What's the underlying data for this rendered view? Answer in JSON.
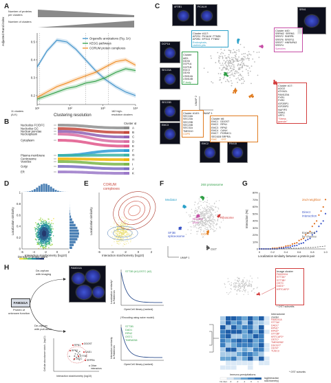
{
  "panels": {
    "A": "A",
    "B": "B",
    "C": "C",
    "D": "D",
    "E": "E",
    "F": "F",
    "G": "G",
    "H": "H"
  },
  "panelA": {
    "top_label_1": "Number of proteins\nper clusters",
    "top_label_2": "Number of clusters",
    "ylabel": "Adjusted Rand index",
    "xlabel": "Clustering resolution",
    "left_note": "11 clusters\n(A-K)",
    "right_note": "182 high-\nresolution clusters",
    "x_ticks": [
      "10¹",
      "10²",
      "10³",
      "10⁴"
    ],
    "y_ticks": [
      "0.2",
      "0.3",
      "0.4",
      "0.5"
    ],
    "legend": [
      {
        "name": "Organelle annotations (Fig. 3A)",
        "color": "#3a8fc8"
      },
      {
        "name": "KEGG pathways",
        "color": "#2e9e45"
      },
      {
        "name": "CORUM protein complexes",
        "color": "#ef8a1f"
      }
    ]
  },
  "chart_data": [
    {
      "type": "line",
      "xlabel": "Clustering resolution",
      "ylabel": "Adjusted Rand index",
      "xscale": "log",
      "ylim": [
        0.15,
        0.55
      ],
      "grid": false,
      "legend_position": "top-right",
      "series": [
        {
          "name": "Organelle annotations (Fig. 3A)",
          "x": [
            10,
            20,
            40,
            80,
            150,
            300,
            600,
            1200,
            2500,
            5000,
            10000
          ],
          "y": [
            0.36,
            0.45,
            0.51,
            0.5,
            0.46,
            0.4,
            0.34,
            0.29,
            0.25,
            0.22,
            0.2
          ]
        },
        {
          "name": "KEGG pathways",
          "x": [
            10,
            20,
            40,
            80,
            150,
            300,
            600,
            1200,
            2500,
            5000,
            10000
          ],
          "y": [
            0.18,
            0.2,
            0.22,
            0.24,
            0.25,
            0.27,
            0.28,
            0.3,
            0.33,
            0.35,
            0.34
          ]
        },
        {
          "name": "CORUM protein complexes",
          "x": [
            10,
            20,
            40,
            80,
            150,
            300,
            600,
            1200,
            2500,
            5000,
            10000
          ],
          "y": [
            0.19,
            0.22,
            0.25,
            0.27,
            0.29,
            0.31,
            0.33,
            0.36,
            0.39,
            0.4,
            0.37
          ]
        }
      ]
    },
    {
      "type": "scatter",
      "xlabel": "Localization similarity between a protein pair",
      "ylabel": "Interaction (%)",
      "xlim": [
        0,
        1.0
      ],
      "ylim": [
        0,
        80
      ],
      "series": [
        {
          "name": "2nd-neighbor",
          "x": [
            0.0,
            0.1,
            0.2,
            0.3,
            0.4,
            0.5,
            0.6,
            0.7,
            0.8,
            0.9,
            1.0
          ],
          "y": [
            0,
            0,
            1,
            2,
            4,
            7,
            12,
            20,
            32,
            48,
            70
          ]
        },
        {
          "name": "Direct interaction",
          "x": [
            0.0,
            0.1,
            0.2,
            0.3,
            0.4,
            0.5,
            0.6,
            0.7,
            0.8,
            0.9,
            1.0
          ],
          "y": [
            0,
            0,
            0,
            1,
            2,
            4,
            7,
            12,
            20,
            32,
            50
          ]
        },
        {
          "name": "Expected by chance",
          "x": [
            0.0,
            0.1,
            0.2,
            0.3,
            0.4,
            0.5,
            0.6,
            0.7,
            0.8,
            0.9,
            1.0
          ],
          "y": [
            0,
            0,
            0,
            0,
            0,
            1,
            1,
            2,
            2,
            3,
            4
          ]
        }
      ]
    }
  ],
  "panelB": {
    "left_items": [
      "Nucleolus FC/DFC",
      "Nucleolus GC",
      "Nuclear punctae",
      "Nucleoplasm",
      "Cytoplasm",
      "Plasma membrane",
      "Centrosome",
      "Vesicles",
      "Golgi",
      "ER"
    ],
    "header": "Cluster id",
    "ids": [
      "A",
      "B",
      "C",
      "D",
      "E",
      "F",
      "G",
      "H",
      "I",
      "J",
      "K"
    ],
    "colors": [
      "#8e8e8e",
      "#c4463a",
      "#8e5fb3",
      "#d96ba0",
      "#e1568a",
      "#2e9bd6",
      "#39b3a4",
      "#f0b400",
      "#7ab648",
      "#7b6cc2",
      "#9a78c8"
    ]
  },
  "panelC": {
    "images": [
      "AP2B1",
      "PICALM",
      "SRN1",
      "DCP1A",
      "SEC23A",
      "SEC23B",
      "EMC3",
      "EMC2",
      "FBX15"
    ],
    "clusters": [
      {
        "title": "Cluster #117:",
        "body": "AP2S1  PICALM  FTNB1\nAP2B1  EPS15  FTNB2",
        "note": "Endocytosis,\nclathrin-pits",
        "color": "#2aa0c8"
      },
      {
        "title": "Cluster #40:",
        "body": "SRRM2  SRRM1\nSRSF2  SNRPB\nSRSF6  SRSF11\nSRSF7  HNRNPA3\nSRSF4",
        "note": "Speckles",
        "color": "#c64ea6"
      },
      {
        "title": "Cluster #83:",
        "body": "DDX6\nDCP1A\nDCP1B\nEDC3\nDDX6\nLSM14A\nLSM14B",
        "note": "P-body",
        "color": "#2e9e45"
      },
      {
        "title": "Cluster #17:",
        "body": "AGO2\nATXN2L\nFAM120A\nFXR1\nFXR2\nIGF2BP1\nIGF2BP3\nNUFIP2\nSMN1\nUPF1",
        "note": "\"Stress\ngranule\"",
        "color": "#d23b3b"
      },
      {
        "title": "Cluster #149:",
        "body": "SEC16A\nSEC23A\nSEC23B\nSEC24B\nSEC31A\nTMED10",
        "note": "COPII",
        "color": "#e07b1f"
      },
      {
        "title": "Cluster #6:",
        "body": "EMC1   DDOST\nEMC2   RPN1\nEMC3   RPN2\nEMC4   CANX\nEMC7   PGRMC1\nSEC61B SRPRA",
        "note": "EMC      OST",
        "color": "#e07b1f"
      }
    ],
    "umap1": "UMAP 1",
    "umap2": "UMAP 2"
  },
  "panelD": {
    "ylabel": "Localization similarity",
    "xlabel": "Interaction stoichiometry (log10)",
    "colorbar_label": "Density of protein pairs",
    "x_ticks": [
      "-6",
      "-4",
      "-2",
      "0",
      "2"
    ],
    "y_ticks": [
      "0",
      "0.2",
      "0.4",
      "0.6",
      "0.8",
      "1"
    ]
  },
  "panelE": {
    "legend": "CORUM\ncomplexes",
    "ylabel": "Localization similarity",
    "xlabel": "Interaction stoichiometry (log10)",
    "x_ticks": [
      "-6",
      "-4",
      "-2",
      "0",
      "2"
    ]
  },
  "panelF": {
    "labels": [
      {
        "text": "Mediator",
        "color": "#2aa0c8"
      },
      {
        "text": "26S proteasome",
        "color": "#2e9e45"
      },
      {
        "text": "Nuclear\npore",
        "color": "#c64ea6"
      },
      {
        "text": "Ribosome",
        "color": "#d23b3b"
      },
      {
        "text": "SF3B\nspliceosome",
        "color": "#3b55c8"
      },
      {
        "text": "COPI",
        "color": "#e07b1f"
      },
      {
        "text": "OST",
        "color": "#555555"
      }
    ],
    "umap1": "UMAP 1",
    "umap2": "UMAP 2"
  },
  "panelG": {
    "ylabel": "Interaction (%)",
    "xlabel": "Localization similarity between a protein pair",
    "y_ticks": [
      "0",
      "10%",
      "20%",
      "30%",
      "40%",
      "50%",
      "60%",
      "70%",
      "80%"
    ],
    "x_ticks": [
      "0",
      "0.2",
      "0.4",
      "0.6",
      "0.8",
      "1.0"
    ],
    "legend": [
      {
        "name": "2nd-neighbor",
        "color": "#e0701f"
      },
      {
        "name": "Direct\ninteraction",
        "color": "#3b55c8"
      },
      {
        "name": "Expected\nby chance",
        "color": "#555555"
      }
    ]
  },
  "panelH": {
    "protein": "FAM241A",
    "protein_caption": "Protein of\nunknown function",
    "arrow1": "De-orphan\nwith imaging",
    "arrow2": "De-orphan\nwith pull-down",
    "img_title": "FAM241A",
    "rank_ylabel": "Localization similarity*\nto FAM241A",
    "rank_xlabel": "OpenCell library (ranked)",
    "rank_note": "(*Encoding using naive model)",
    "rank_labels": [
      "STT3B (#1)",
      "OSTC (#2)"
    ],
    "rank2_ylabel": "Interaction similarity\nto FAM241A",
    "rank2_xlabel": "OpenCell library (ranked)",
    "rank2_labels": [
      "STT3B",
      "DAD1",
      "RPN2",
      "OSTC",
      "TMEM258"
    ],
    "volcano_ylabel": "Cellular abundance stoich. (log10)",
    "volcano_xlabel": "Interaction stoichiometry (log10)",
    "volcano_labels": [
      "RPN1",
      "DDOST",
      "RPN2",
      "DAD1",
      "STT3B",
      "OSTC",
      "SRPRA"
    ],
    "volcano_legend": "Other\ninteractors",
    "image_cluster_title": "Image cluster",
    "image_cluster_items": "FAM241A\nSTT3A*\nSTT3B*\nOSTC\nDAD1*\nKRTCAP2*",
    "image_cluster_note": "* OST subunits",
    "interactome_title": "Interactome\ncluster",
    "interactome_items": "FAM241A\nSTT3A*\nDAD1*\nRPN1*\nRPN2*\nSTT3B*\nKRTCAP2*\nOSTC*\nTMEM258*\nDDOST*\nOST4*\nTUSC3",
    "interactome_note": "* OST subunits",
    "heat_xlabel": "Immuno-precipitations",
    "heat_legend_title": "log(interaction\nstoichiometry)",
    "heat_legend_ticks": [
      "No inter.",
      "-3",
      "-2",
      "-1",
      "0",
      "1"
    ]
  }
}
